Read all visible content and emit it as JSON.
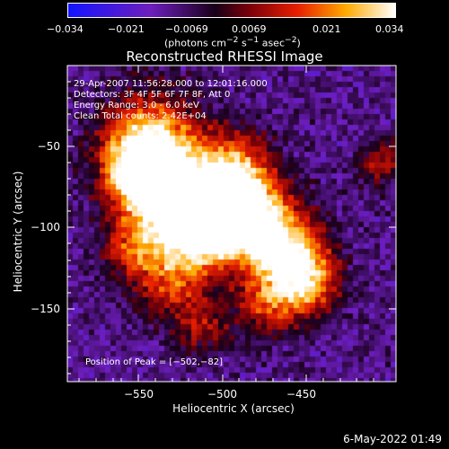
{
  "colorbar": {
    "ticks": [
      "−0.034",
      "−0.021",
      "−0.0069",
      "0.0069",
      "0.021",
      "0.034"
    ],
    "unit_html": "(photons cm<sup>−2</sup> s<sup>−1</sup> asec<sup>−2</sup>)"
  },
  "title": "Reconstructed RHESSI Image",
  "info": {
    "line1": "29-Apr-2007 11:56:28.000 to 12:01:16.000",
    "line2": "Detectors: 3F 4F 5F 6F 7F 8F, Att 0",
    "line3": "Energy Range: 3.0 - 6.0 keV",
    "line4": "Clean    Total counts: 2.42E+04",
    "peak": "Position of Peak = [−502,−82]"
  },
  "axes": {
    "xlabel": "Heliocentric X (arcsec)",
    "ylabel": "Heliocentric Y (arcsec)",
    "xticks": [
      "−550",
      "−500",
      "−450"
    ],
    "yticks": [
      "−50",
      "−100",
      "−150"
    ]
  },
  "timestamp": "6-May-2022 01:49",
  "chart_data": {
    "type": "heatmap",
    "title": "Reconstructed RHESSI Image",
    "xlabel": "Heliocentric X (arcsec)",
    "ylabel": "Heliocentric Y (arcsec)",
    "xlim": [
      -595,
      -405
    ],
    "ylim": [
      -195,
      -22
    ],
    "colorbar_range": [
      -0.034,
      0.034
    ],
    "peak_position": [
      -502,
      -82
    ],
    "colormap": "blue-purple-red-yellow-white"
  },
  "colors": {
    "background": "#000000",
    "axis": "#ffffff"
  }
}
